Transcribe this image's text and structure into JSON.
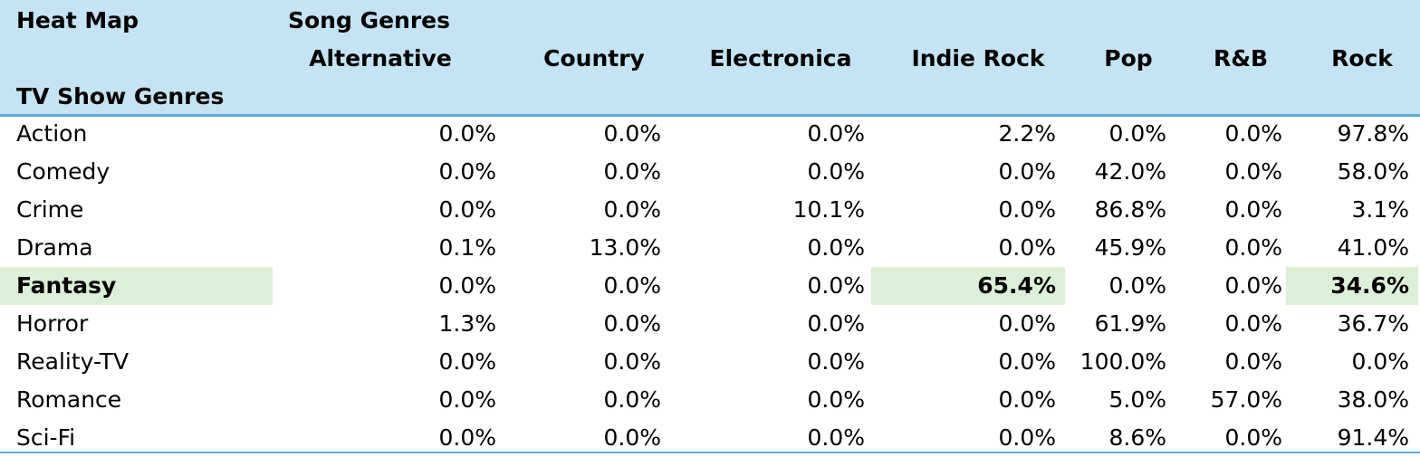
{
  "header": {
    "corner_label": "Heat Map",
    "group_label": "Song Genres",
    "row_axis_label": "TV Show Genres"
  },
  "colors": {
    "header_bg": "#c5e3f3",
    "header_rule": "#5aaed6",
    "highlight": "#dcf0d7"
  },
  "chart_data": {
    "type": "heatmap",
    "title": "Heat Map",
    "xlabel": "Song Genres",
    "ylabel": "TV Show Genres",
    "columns": [
      "Alternative",
      "Country",
      "Electronica",
      "Indie Rock",
      "Pop",
      "R&B",
      "Rock"
    ],
    "rows": [
      {
        "label": "Action",
        "values": [
          "0.0%",
          "0.0%",
          "0.0%",
          "2.2%",
          "0.0%",
          "0.0%",
          "97.8%"
        ]
      },
      {
        "label": "Comedy",
        "values": [
          "0.0%",
          "0.0%",
          "0.0%",
          "0.0%",
          "42.0%",
          "0.0%",
          "58.0%"
        ]
      },
      {
        "label": "Crime",
        "values": [
          "0.0%",
          "0.0%",
          "10.1%",
          "0.0%",
          "86.8%",
          "0.0%",
          "3.1%"
        ]
      },
      {
        "label": "Drama",
        "values": [
          "0.1%",
          "13.0%",
          "0.0%",
          "0.0%",
          "45.9%",
          "0.0%",
          "41.0%"
        ]
      },
      {
        "label": "Fantasy",
        "values": [
          "0.0%",
          "0.0%",
          "0.0%",
          "65.4%",
          "0.0%",
          "0.0%",
          "34.6%"
        ],
        "highlight": true,
        "highlight_cols": [
          3,
          6
        ]
      },
      {
        "label": "Horror",
        "values": [
          "1.3%",
          "0.0%",
          "0.0%",
          "0.0%",
          "61.9%",
          "0.0%",
          "36.7%"
        ]
      },
      {
        "label": "Reality-TV",
        "values": [
          "0.0%",
          "0.0%",
          "0.0%",
          "0.0%",
          "100.0%",
          "0.0%",
          "0.0%"
        ]
      },
      {
        "label": "Romance",
        "values": [
          "0.0%",
          "0.0%",
          "0.0%",
          "0.0%",
          "5.0%",
          "57.0%",
          "38.0%"
        ]
      },
      {
        "label": "Sci-Fi",
        "values": [
          "0.0%",
          "0.0%",
          "0.0%",
          "0.0%",
          "8.6%",
          "0.0%",
          "91.4%"
        ]
      }
    ]
  }
}
